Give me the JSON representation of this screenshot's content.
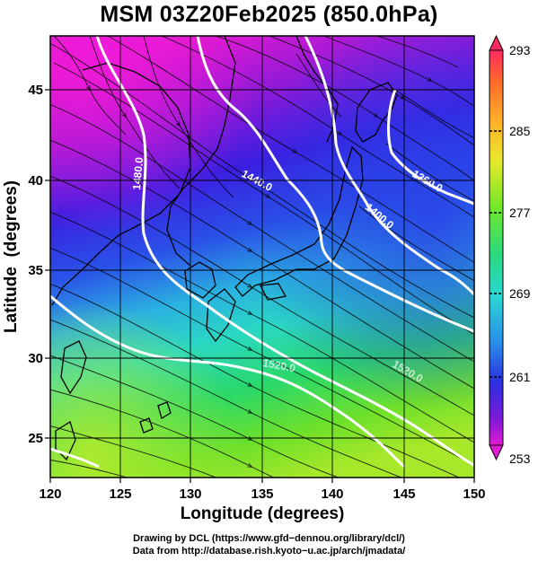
{
  "title": "MSM 03Z20Feb2025 (850.0hPa)",
  "map": {
    "xlabel": "Longitude (degrees)",
    "ylabel": "Latitude  (degrees)",
    "x_ticks": [
      "120",
      "125",
      "130",
      "135",
      "140",
      "145",
      "150"
    ],
    "y_ticks": [
      "25",
      "30",
      "35",
      "40",
      "45"
    ],
    "lon_range": [
      120,
      150
    ],
    "lat_range": [
      22.5,
      47.5
    ]
  },
  "contours": {
    "labels": [
      "1480.0",
      "1440.0",
      "1400.0",
      "1360.0",
      "1520.0",
      "1520.0"
    ],
    "color": "#ffffff"
  },
  "colorbar": {
    "tick_labels": [
      "293",
      "285",
      "277",
      "269",
      "261",
      "253"
    ],
    "min": 253,
    "max": 293,
    "colors": [
      "#ff2a60",
      "#ff8a2a",
      "#f2e82a",
      "#6fe82a",
      "#2ad87a",
      "#2ad8d2",
      "#2a8ee8",
      "#2a32e0",
      "#7a1ad8",
      "#e01ad2"
    ]
  },
  "credits": {
    "line1": "Drawing by DCL (https://www.gfd−dennou.org/library/dcl/)",
    "line2": "Data from http://database.rish.kyoto−u.ac.jp/arch/jmadata/"
  }
}
